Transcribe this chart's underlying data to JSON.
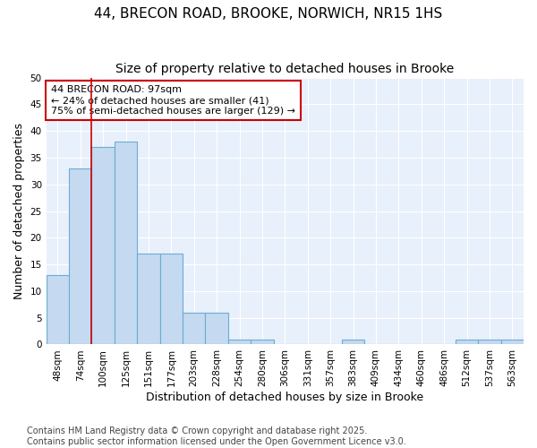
{
  "title_line1": "44, BRECON ROAD, BROOKE, NORWICH, NR15 1HS",
  "title_line2": "Size of property relative to detached houses in Brooke",
  "xlabel": "Distribution of detached houses by size in Brooke",
  "ylabel": "Number of detached properties",
  "categories": [
    "48sqm",
    "74sqm",
    "100sqm",
    "125sqm",
    "151sqm",
    "177sqm",
    "203sqm",
    "228sqm",
    "254sqm",
    "280sqm",
    "306sqm",
    "331sqm",
    "357sqm",
    "383sqm",
    "409sqm",
    "434sqm",
    "460sqm",
    "486sqm",
    "512sqm",
    "537sqm",
    "563sqm"
  ],
  "values": [
    13,
    33,
    37,
    38,
    17,
    17,
    6,
    6,
    1,
    1,
    0,
    0,
    0,
    1,
    0,
    0,
    0,
    0,
    1,
    1,
    1
  ],
  "bar_color": "#c5d9f0",
  "bar_edge_color": "#6aadd5",
  "ylim": [
    0,
    50
  ],
  "yticks": [
    0,
    5,
    10,
    15,
    20,
    25,
    30,
    35,
    40,
    45,
    50
  ],
  "vline_x_index": 2,
  "vline_color": "#cc0000",
  "annotation_text_line1": "44 BRECON ROAD: 97sqm",
  "annotation_text_line2": "← 24% of detached houses are smaller (41)",
  "annotation_text_line3": "75% of semi-detached houses are larger (129) →",
  "annotation_fontsize": 8,
  "annotation_box_color": "#cc0000",
  "footer_line1": "Contains HM Land Registry data © Crown copyright and database right 2025.",
  "footer_line2": "Contains public sector information licensed under the Open Government Licence v3.0.",
  "background_color": "#e8f0fb",
  "grid_color": "#ffffff",
  "title_fontsize": 11,
  "subtitle_fontsize": 10,
  "axis_label_fontsize": 9,
  "tick_fontsize": 7.5,
  "footer_fontsize": 7
}
